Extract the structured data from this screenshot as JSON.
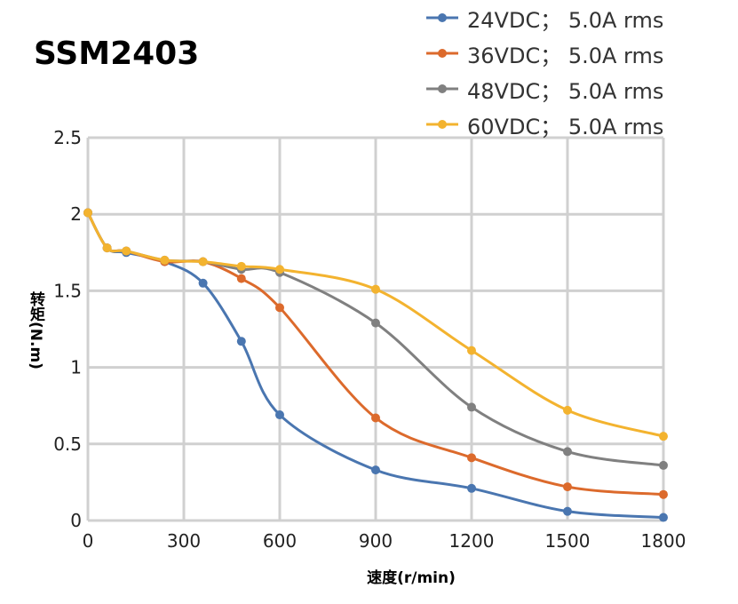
{
  "chart_data": {
    "type": "line",
    "title": "SSM2403",
    "xlabel": "速度(r/min)",
    "ylabel": "转矩(N.m)",
    "xlim": [
      0,
      1800
    ],
    "ylim": [
      0,
      2.5
    ],
    "xticks": [
      "0",
      "300",
      "600",
      "900",
      "1200",
      "1500",
      "1800"
    ],
    "yticks": [
      "0",
      "0.5",
      "1",
      "1.5",
      "2",
      "2.5"
    ],
    "grid": true,
    "legend": "top-right",
    "x": [
      0,
      60,
      120,
      240,
      360,
      480,
      600,
      900,
      1200,
      1500,
      1800
    ],
    "series": [
      {
        "name": "24VDC；  5.0A rms",
        "color": "#4a76b0",
        "values": [
          2.01,
          1.78,
          1.75,
          1.69,
          1.55,
          1.17,
          0.69,
          0.33,
          0.21,
          0.06,
          0.02
        ]
      },
      {
        "name": "36VDC；  5.0A rms",
        "color": "#dc6a2c",
        "values": [
          2.01,
          1.78,
          1.76,
          1.69,
          1.69,
          1.58,
          1.39,
          0.67,
          0.41,
          0.22,
          0.17
        ]
      },
      {
        "name": "48VDC；  5.0A rms",
        "color": "#808080",
        "values": [
          2.01,
          1.78,
          1.76,
          1.7,
          1.69,
          1.64,
          1.62,
          1.29,
          0.74,
          0.45,
          0.36
        ]
      },
      {
        "name": "60VDC；  5.0A rms",
        "color": "#f3b32f",
        "values": [
          2.01,
          1.78,
          1.76,
          1.7,
          1.69,
          1.66,
          1.64,
          1.51,
          1.11,
          0.72,
          0.55
        ]
      }
    ]
  }
}
